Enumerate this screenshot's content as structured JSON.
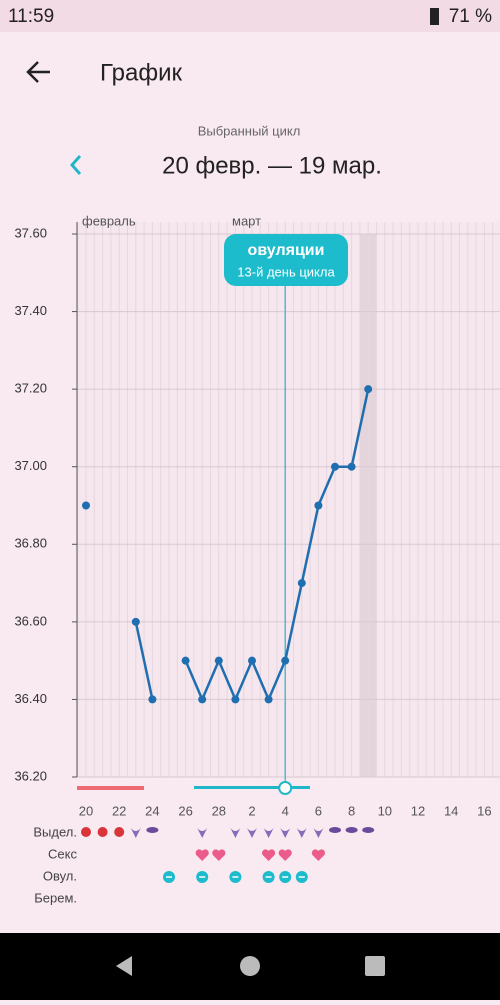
{
  "status_bar": {
    "time": "11:59",
    "battery": "71 %"
  },
  "header": {
    "title": "График"
  },
  "cycle": {
    "caption": "Выбранный цикл",
    "range": "20 февр. — 19 мар."
  },
  "chart_data": {
    "type": "line",
    "months": [
      "февраль",
      "март"
    ],
    "categories": [
      "20",
      null,
      "22",
      null,
      "24",
      null,
      "26",
      null,
      "28",
      null,
      "2",
      null,
      "4",
      null,
      "6",
      null,
      "8",
      null,
      "10",
      null,
      "12",
      null,
      "14",
      null,
      "16"
    ],
    "series": [
      {
        "name": "Температура",
        "color": "#1f6fb0",
        "values": [
          36.9,
          null,
          null,
          36.6,
          36.4,
          null,
          36.5,
          36.4,
          36.5,
          36.4,
          36.5,
          36.4,
          36.5,
          36.7,
          36.9,
          37.0,
          37.0,
          37.2,
          null,
          null,
          null,
          null,
          null,
          null,
          null
        ]
      }
    ],
    "ylim": [
      36.2,
      37.6
    ],
    "yticks": [
      {
        "value": 36.2,
        "label": "36.20"
      },
      {
        "value": 36.4,
        "label": "36.40"
      },
      {
        "value": 36.6,
        "label": "36.60"
      },
      {
        "value": 36.8,
        "label": "36.80"
      },
      {
        "value": 37.0,
        "label": "37.00"
      },
      {
        "value": 37.2,
        "label": "37.20"
      },
      {
        "value": 37.4,
        "label": "37.40"
      },
      {
        "value": 37.6,
        "label": "37.60"
      }
    ],
    "grid": true,
    "ovulation": {
      "title": "овуляции",
      "subtitle": "13-й день цикла"
    }
  },
  "rows": [
    "Выдел.",
    "Секс",
    "Овул.",
    "Берем."
  ]
}
